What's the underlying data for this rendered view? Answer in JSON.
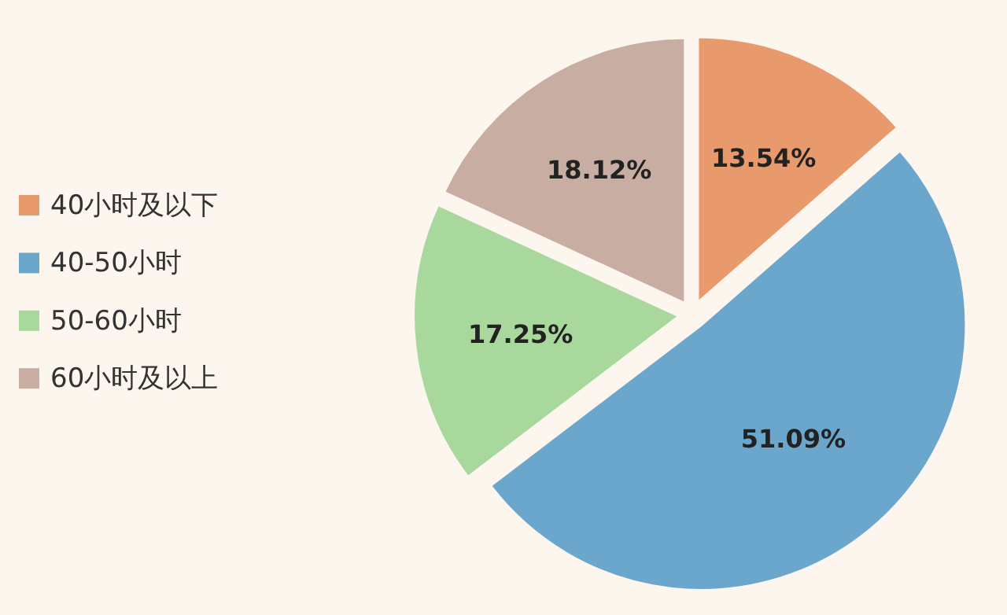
{
  "chart_data": {
    "type": "pie",
    "categories": [
      "40小时及以下",
      "40-50小时",
      "50-60小时",
      "60小时及以上"
    ],
    "values": [
      13.54,
      51.09,
      17.25,
      18.12
    ],
    "value_labels": [
      "13.54%",
      "51.09%",
      "17.25%",
      "18.12%"
    ],
    "colors": [
      "#e99a6c",
      "#6ba7cd",
      "#a8d89c",
      "#c8aea2"
    ],
    "legend": "left"
  }
}
